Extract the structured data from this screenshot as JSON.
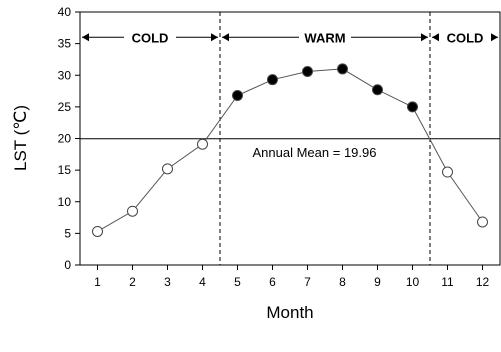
{
  "chart_data": {
    "type": "line",
    "xlabel": "Month",
    "ylabel": "LST (℃)",
    "x": [
      1,
      2,
      3,
      4,
      5,
      6,
      7,
      8,
      9,
      10,
      11,
      12
    ],
    "y": [
      5.3,
      8.5,
      15.2,
      19.1,
      26.8,
      29.3,
      30.6,
      31.0,
      27.7,
      25.0,
      14.7,
      6.8
    ],
    "marker_fill": [
      "white",
      "white",
      "white",
      "white",
      "black",
      "black",
      "black",
      "black",
      "black",
      "black",
      "white",
      "white"
    ],
    "xlim": [
      0.5,
      12.5
    ],
    "ylim": [
      0,
      40
    ],
    "xticks": [
      1,
      2,
      3,
      4,
      5,
      6,
      7,
      8,
      9,
      10,
      11,
      12
    ],
    "yticks": [
      0,
      5,
      10,
      15,
      20,
      25,
      30,
      35,
      40
    ],
    "grid": false,
    "annual_mean": {
      "value": 19.96,
      "label": "Annual Mean = 19.96"
    },
    "season_dividers": [
      4.5,
      10.5
    ],
    "seasons": [
      {
        "label": "COLD",
        "from": 0.5,
        "to": 4.5
      },
      {
        "label": "WARM",
        "from": 4.5,
        "to": 10.5
      },
      {
        "label": "COLD",
        "from": 10.5,
        "to": 12.5
      }
    ]
  }
}
